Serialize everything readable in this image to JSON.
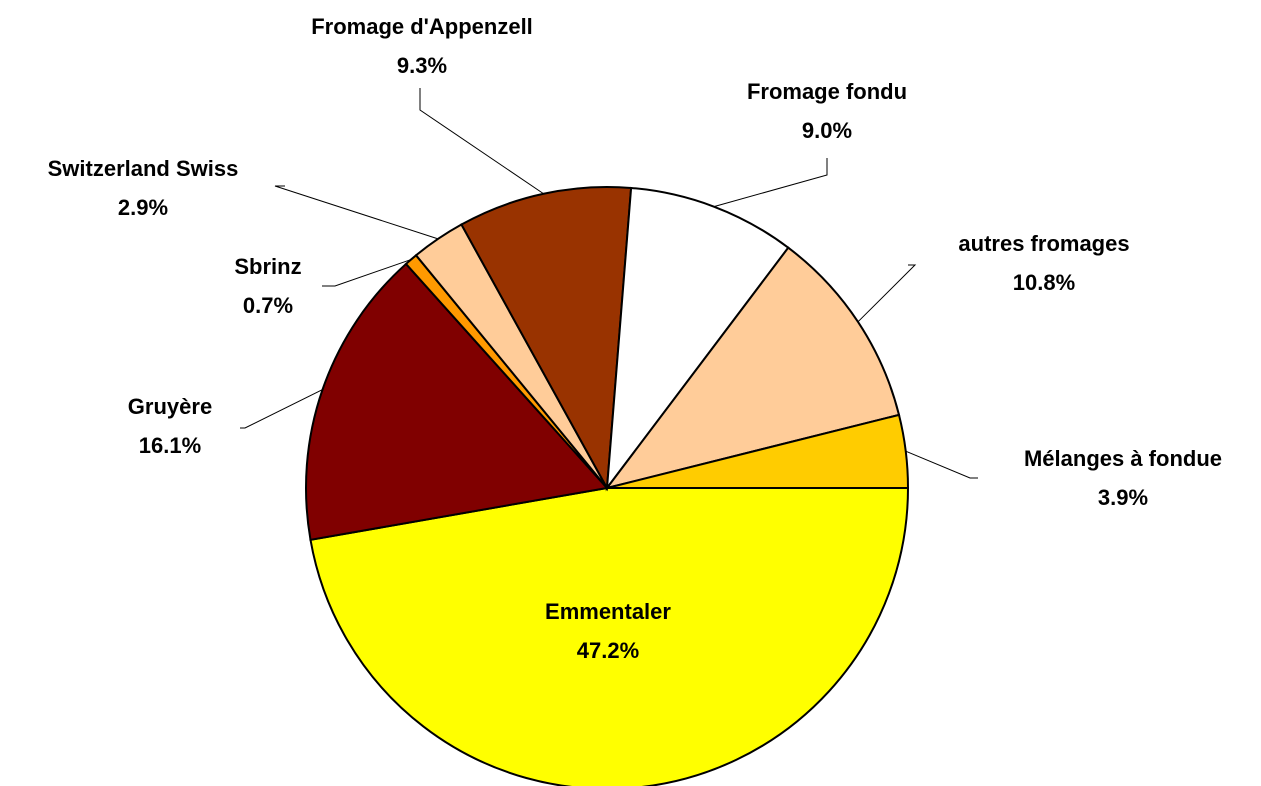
{
  "chart_data": {
    "type": "pie",
    "categories": [
      "Emmentaler",
      "Gruyère",
      "Sbrinz",
      "Switzerland Swiss",
      "Fromage d'Appenzell",
      "Fromage fondu",
      "autres fromages",
      "Mélanges à fondue"
    ],
    "values": [
      47.2,
      16.1,
      0.7,
      2.9,
      9.3,
      9.0,
      10.8,
      3.9
    ],
    "value_labels": [
      "47.2%",
      "16.1%",
      "0.7%",
      "2.9%",
      "9.3%",
      "9.0%",
      "10.8%",
      "3.9%"
    ],
    "colors": [
      "#ffff00",
      "#800000",
      "#ff9900",
      "#ffcc99",
      "#993300",
      "#ffffff",
      "#ffcc99",
      "#ffcc00"
    ]
  }
}
